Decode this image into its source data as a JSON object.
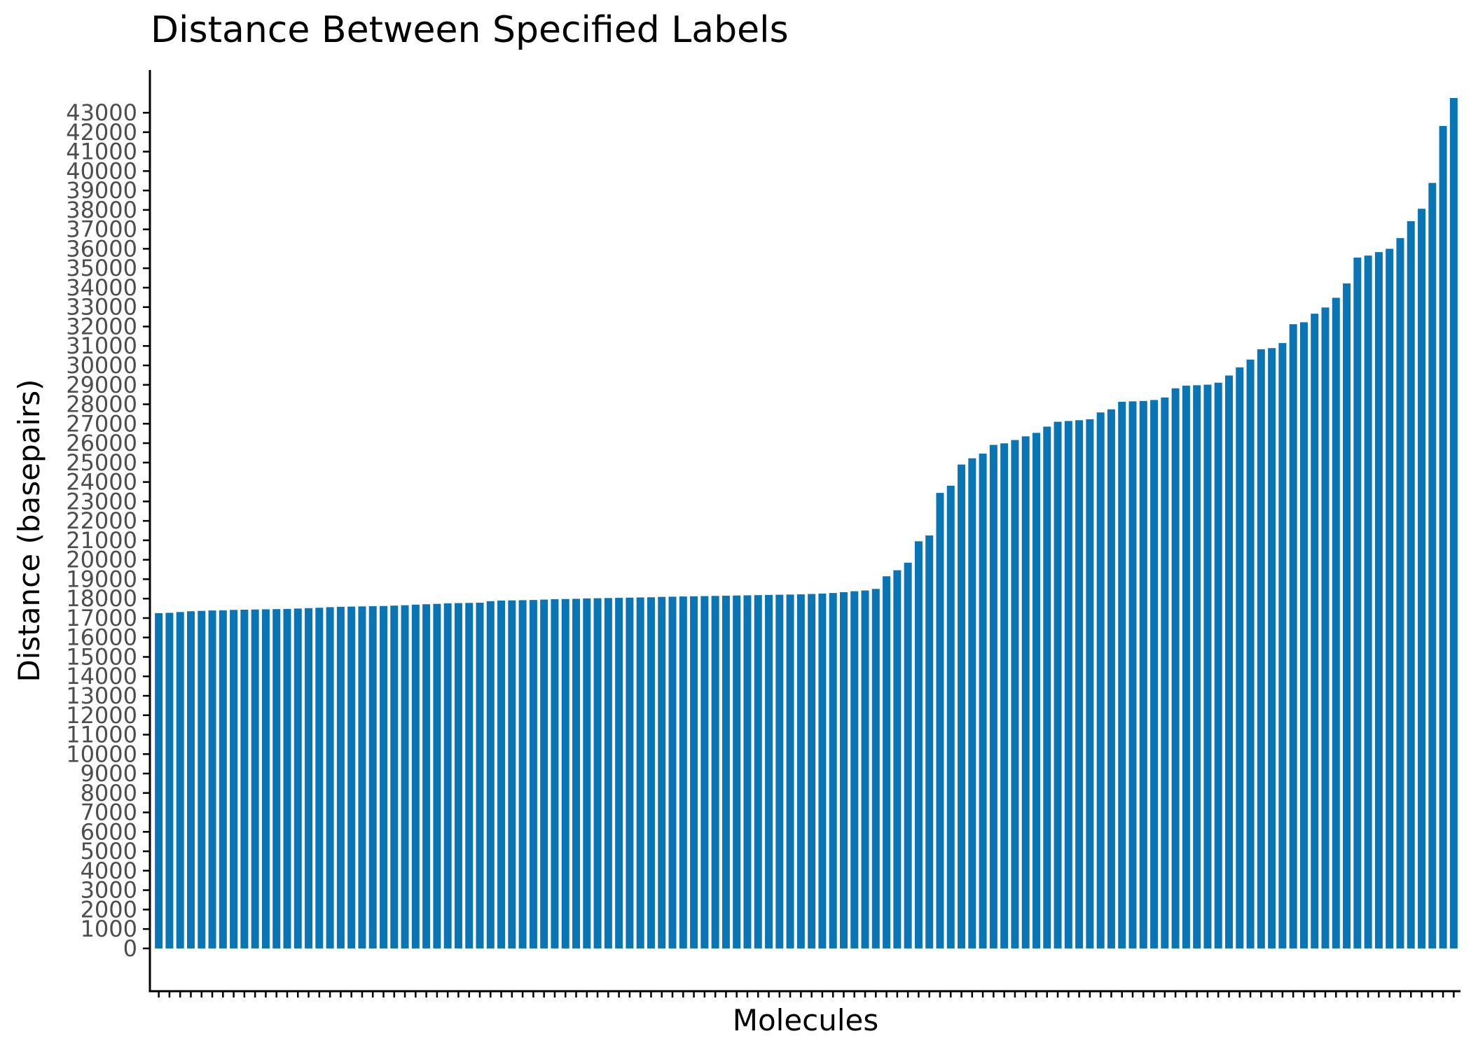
{
  "chart_data": {
    "type": "bar",
    "title": "Distance Between Specified Labels",
    "xlabel": "Molecules",
    "ylabel": "Distance (basepairs)",
    "ylim": [
      -2200,
      45200
    ],
    "y_ticks": [
      0,
      1000,
      2000,
      3000,
      4000,
      5000,
      6000,
      7000,
      8000,
      9000,
      10000,
      11000,
      12000,
      13000,
      14000,
      15000,
      16000,
      17000,
      18000,
      19000,
      20000,
      21000,
      22000,
      23000,
      24000,
      25000,
      26000,
      27000,
      28000,
      29000,
      30000,
      31000,
      32000,
      33000,
      34000,
      35000,
      36000,
      37000,
      38000,
      39000,
      40000,
      41000,
      42000,
      43000
    ],
    "x_tick_labels": "none",
    "grid": false,
    "legend": "none",
    "bar_color": "#0a75b4",
    "values": [
      17250,
      17270,
      17310,
      17350,
      17370,
      17390,
      17400,
      17420,
      17430,
      17440,
      17450,
      17460,
      17470,
      17490,
      17510,
      17530,
      17560,
      17580,
      17590,
      17600,
      17610,
      17620,
      17640,
      17660,
      17690,
      17710,
      17730,
      17760,
      17770,
      17780,
      17790,
      17870,
      17900,
      17910,
      17920,
      17930,
      17950,
      17970,
      17980,
      17990,
      18010,
      18020,
      18030,
      18040,
      18050,
      18060,
      18070,
      18090,
      18100,
      18110,
      18120,
      18130,
      18140,
      18150,
      18160,
      18170,
      18180,
      18190,
      18200,
      18210,
      18220,
      18240,
      18260,
      18290,
      18330,
      18380,
      18420,
      18500,
      19150,
      19460,
      19850,
      20950,
      21250,
      23440,
      23810,
      24900,
      25220,
      25460,
      25910,
      25990,
      26160,
      26350,
      26530,
      26850,
      27100,
      27140,
      27180,
      27230,
      27580,
      27740,
      28130,
      28150,
      28170,
      28220,
      28350,
      28820,
      28960,
      28980,
      29010,
      29110,
      29480,
      29900,
      30300,
      30830,
      30890,
      31150,
      32120,
      32220,
      32660,
      32980,
      33480,
      34220,
      35550,
      35650,
      35830,
      36000,
      36550,
      37420,
      38060,
      39390,
      42320,
      43760
    ]
  }
}
